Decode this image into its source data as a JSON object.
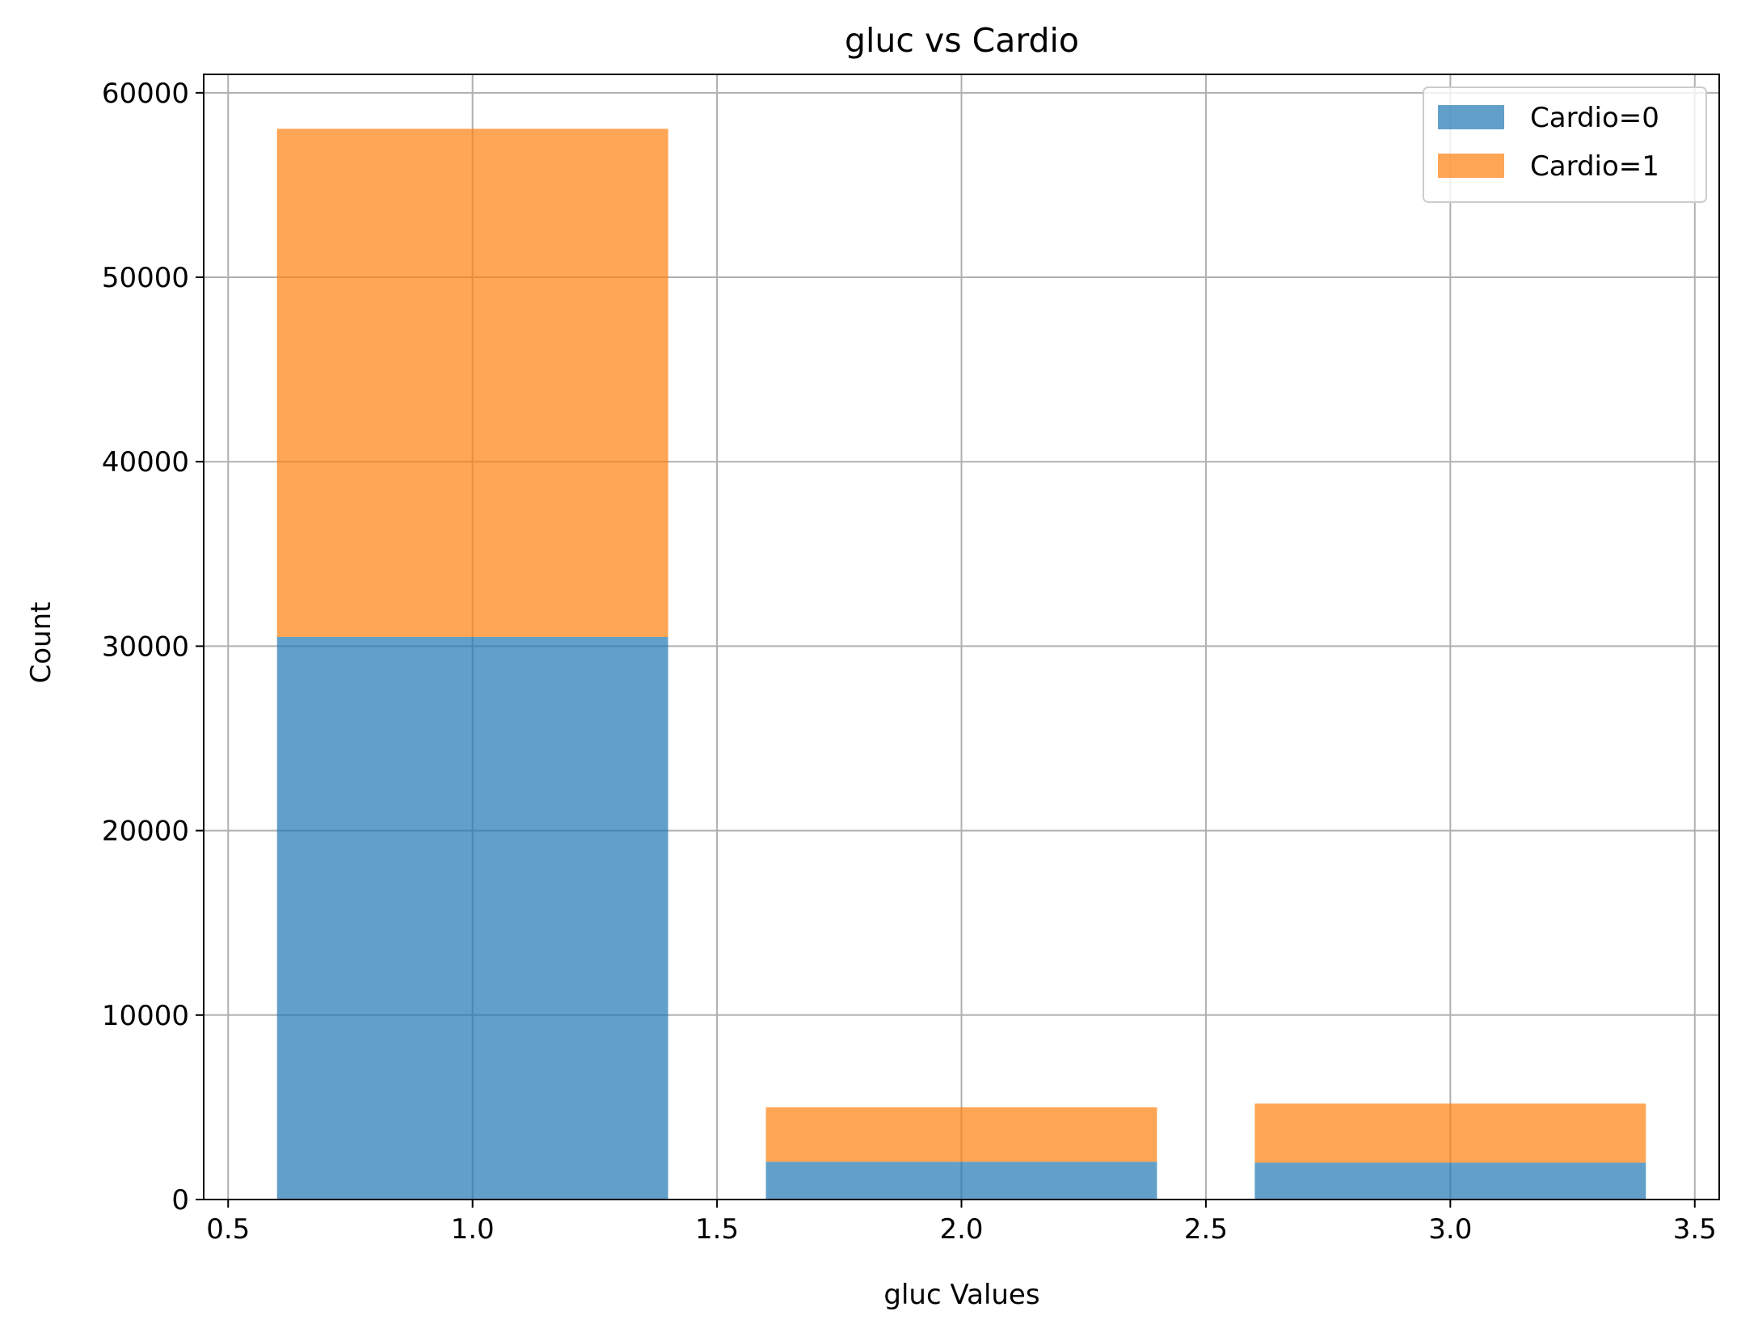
{
  "chart_data": {
    "type": "bar",
    "stacked": true,
    "title": "gluc vs Cardio",
    "xlabel": "gluc Values",
    "ylabel": "Count",
    "x": [
      1,
      2,
      3
    ],
    "bar_width": 0.8,
    "series": [
      {
        "name": "Cardio=0",
        "values": [
          30500,
          2050,
          2000
        ],
        "color": "#1f77b4"
      },
      {
        "name": "Cardio=1",
        "values": [
          27550,
          2950,
          3200
        ],
        "color": "#ff7f0e"
      }
    ],
    "xlim": [
      0.45,
      3.55
    ],
    "ylim": [
      0,
      61000
    ],
    "xticks": [
      0.5,
      1.0,
      1.5,
      2.0,
      2.5,
      3.0,
      3.5
    ],
    "xtick_labels": [
      "0.5",
      "1.0",
      "1.5",
      "2.0",
      "2.5",
      "3.0",
      "3.5"
    ],
    "yticks": [
      0,
      10000,
      20000,
      30000,
      40000,
      50000,
      60000
    ],
    "ytick_labels": [
      "0",
      "10000",
      "20000",
      "30000",
      "40000",
      "50000",
      "60000"
    ],
    "grid": true,
    "legend_position": "top-right",
    "bar_opacity": 0.7
  }
}
